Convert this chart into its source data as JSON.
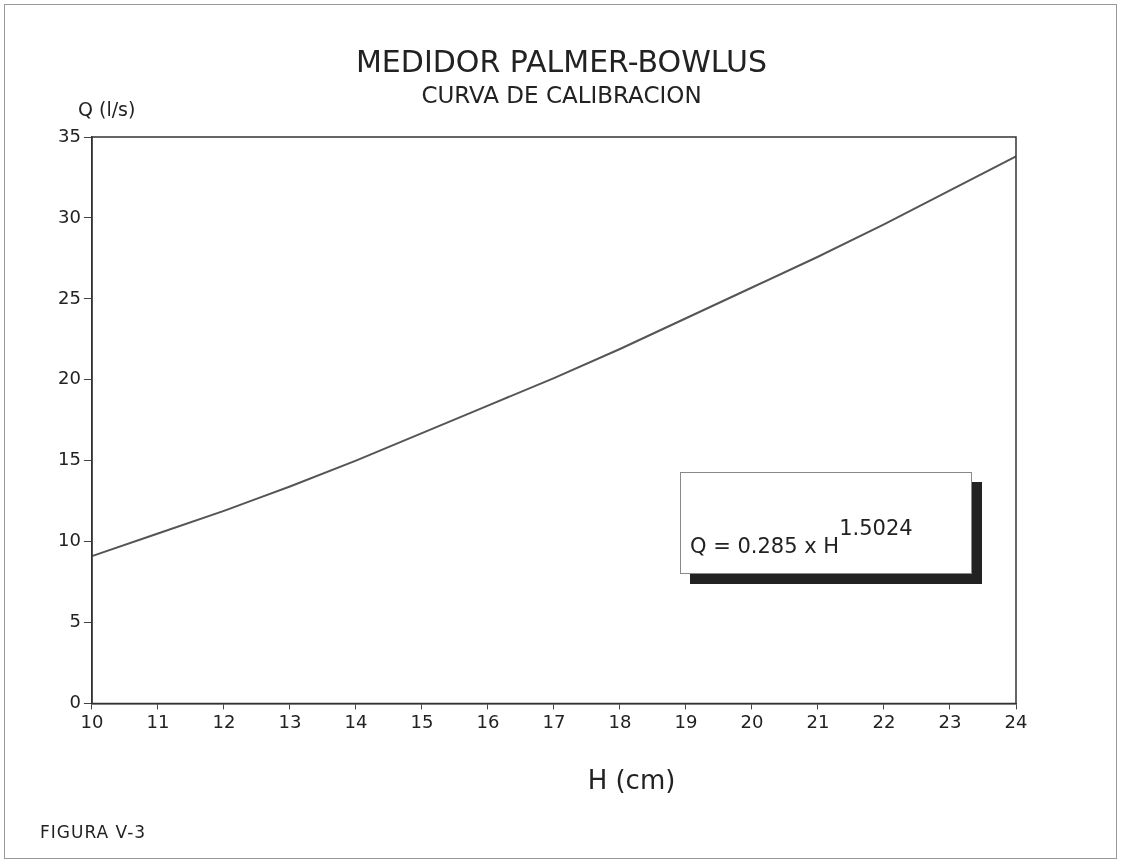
{
  "chart_data": {
    "type": "line",
    "title": "MEDIDOR PALMER-BOWLUS",
    "subtitle": "CURVA DE CALIBRACION",
    "xlabel": "H (cm)",
    "ylabel": "Q (l/s)",
    "annotations": [
      "Q = 0.285 x H$^{1.5024}$",
      "FIGURA V-3"
    ],
    "x": [
      10,
      11,
      12,
      13,
      14,
      15,
      16,
      17,
      18,
      19,
      20,
      21,
      22,
      23,
      24
    ],
    "series": [
      {
        "color": "#555555",
        "values": [
          9.1,
          10.5,
          11.9,
          13.4,
          15.0,
          16.7,
          18.4,
          20.1,
          21.9,
          23.8,
          25.7,
          27.6,
          29.6,
          31.7,
          33.8
        ]
      }
    ],
    "xlim": [
      10,
      24
    ],
    "xticks": [
      10,
      11,
      12,
      13,
      14,
      15,
      16,
      17,
      18,
      19,
      20,
      21,
      22,
      23,
      24
    ],
    "ylim": [
      0,
      35
    ],
    "yticks": [
      0,
      5,
      10,
      15,
      20,
      25,
      30,
      35
    ],
    "grid": false,
    "legend": false,
    "marker": "none",
    "line_style": "solid"
  }
}
